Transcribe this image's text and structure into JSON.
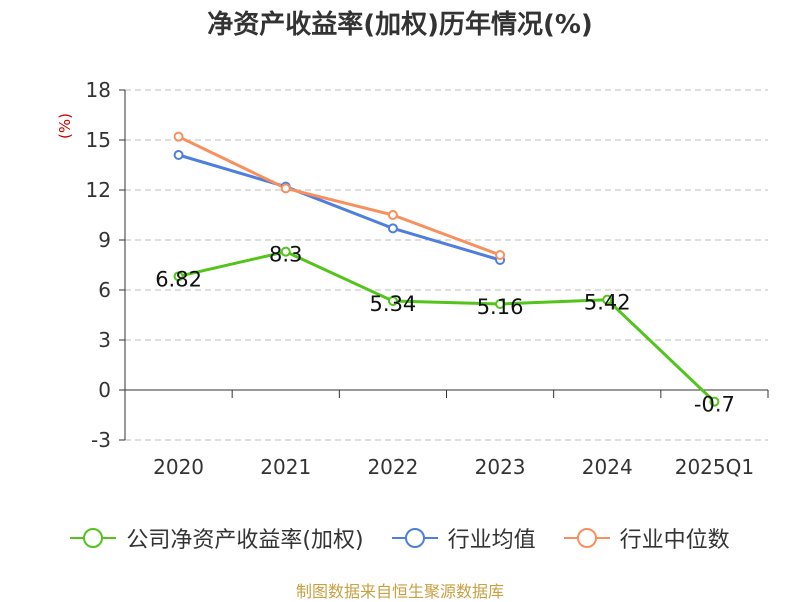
{
  "chart_data": {
    "type": "line",
    "title": "净资产收益率(加权)历年情况(%)",
    "ylabel": "(%)",
    "categories": [
      "2020",
      "2021",
      "2022",
      "2023",
      "2024",
      "2025Q1"
    ],
    "ylim": [
      -3,
      18
    ],
    "yticks": [
      -3,
      0,
      3,
      6,
      9,
      12,
      15,
      18
    ],
    "grid": true,
    "legend_position": "bottom",
    "series": [
      {
        "name": "公司净资产收益率(加权)",
        "color": "#52c41a",
        "values": [
          6.82,
          8.3,
          5.34,
          5.16,
          5.42,
          -0.7
        ],
        "labels": [
          "6.82",
          "8.3",
          "5.34",
          "5.16",
          "5.42",
          "-0.7"
        ]
      },
      {
        "name": "行业均值",
        "color": "#4e7fdc",
        "values": [
          14.1,
          12.2,
          9.7,
          7.8,
          null,
          null
        ]
      },
      {
        "name": "行业中位数",
        "color": "#f7905e",
        "values": [
          15.2,
          12.1,
          10.5,
          8.1,
          null,
          null
        ]
      }
    ]
  },
  "source": "制图数据来自恒生聚源数据库"
}
